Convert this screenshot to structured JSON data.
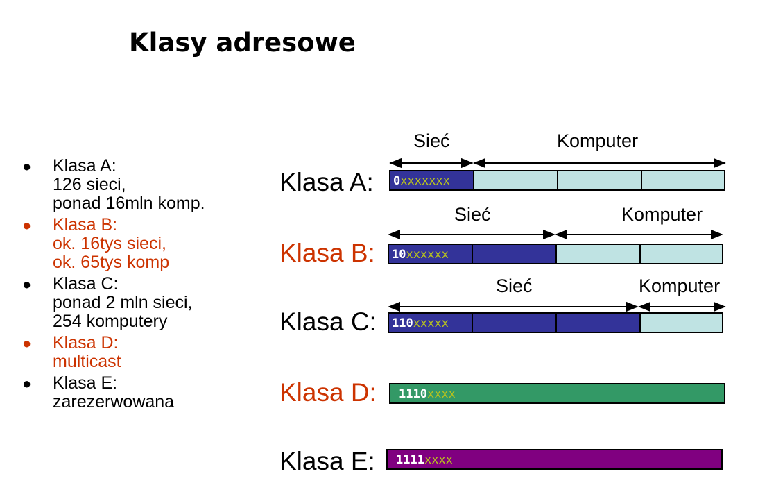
{
  "title": "Klasy adresowe",
  "bullets": [
    {
      "lines": [
        "Klasa A:",
        "126 sieci,",
        "ponad 16mln komp."
      ],
      "color": "black"
    },
    {
      "lines": [
        "Klasa B:",
        "ok. 16tys sieci,",
        "ok. 65tys komp"
      ],
      "color": "red"
    },
    {
      "lines": [
        "Klasa C:",
        "ponad 2 mln sieci,",
        "254 komputery"
      ],
      "color": "black"
    },
    {
      "lines": [
        "Klasa D:",
        "multicast"
      ],
      "color": "red"
    },
    {
      "lines": [
        "Klasa E:",
        "zarezerwowana"
      ],
      "color": "black"
    }
  ],
  "diagram": {
    "network_label": "Sieć",
    "host_label": "Komputer",
    "classes": [
      {
        "label": "Klasa A:",
        "prefix": "0",
        "x_bits": "xxxxxxx",
        "label_color": "black"
      },
      {
        "label": "Klasa B:",
        "prefix": "10",
        "x_bits": "xxxxxx",
        "label_color": "red"
      },
      {
        "label": "Klasa C:",
        "prefix": "110",
        "x_bits": "xxxxx",
        "label_color": "black"
      },
      {
        "label": "Klasa D:",
        "prefix": "1110",
        "x_bits": "xxxx",
        "label_color": "red"
      },
      {
        "label": "Klasa E:",
        "prefix": "1111",
        "x_bits": "xxxx",
        "label_color": "black"
      }
    ]
  },
  "colors": {
    "network": "#333399",
    "host": "#bfe3e3",
    "multicast": "#339966",
    "reserved": "#800080",
    "highlight_text": "#cc3300"
  }
}
